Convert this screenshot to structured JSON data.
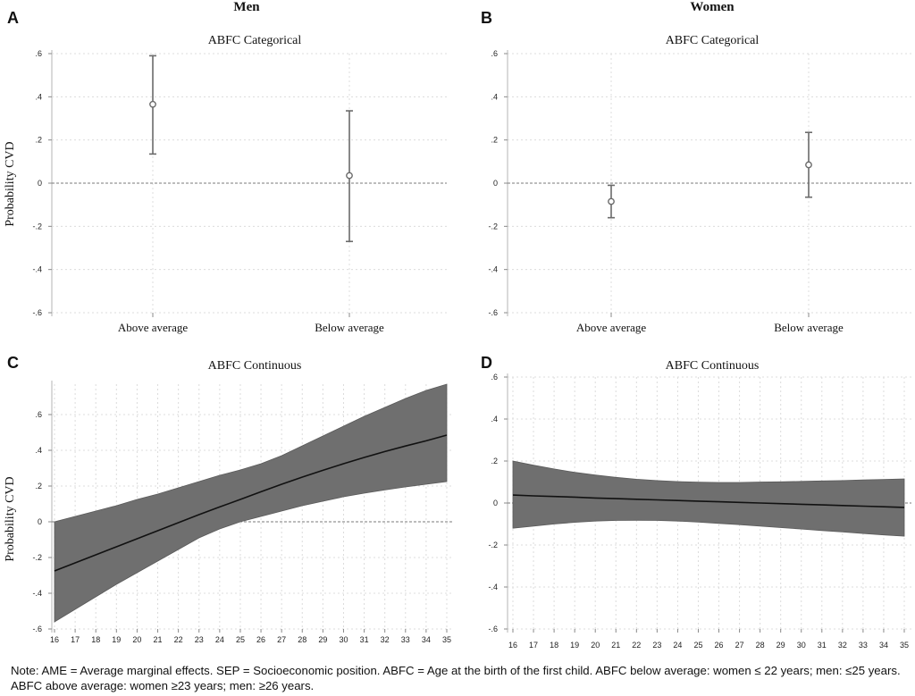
{
  "figure": {
    "group_titles": {
      "men": "Men",
      "women": "Women"
    },
    "note": "Note: AME = Average marginal effects. SEP = Socioeconomic position. ABFC = Age at the birth of the first child. ABFC below average: women ≤ 22 years; men: ≤25 years. ABFC above average: women ≥23 years; men: ≥26 years."
  },
  "colors": {
    "marker": "#6b6b6b",
    "band_fill": "#6f6f6f",
    "line": "#111111",
    "grid": "#dcdcdc",
    "reference": "#7a7a7a"
  },
  "chart_data": [
    {
      "panel": "A",
      "group": "Men",
      "type": "scatter",
      "title": "ABFC Categorical",
      "ylabel": "Probability CVD",
      "categories": [
        "Above average",
        "Below average"
      ],
      "estimates": [
        0.365,
        0.035
      ],
      "ci_lower": [
        0.135,
        -0.27
      ],
      "ci_upper": [
        0.59,
        0.335
      ],
      "ylim": [
        -0.6,
        0.6
      ],
      "yticks": [
        ".6",
        ".4",
        ".2",
        "0",
        "-.2",
        "-.4",
        "-.6"
      ],
      "reference_line": 0,
      "grid": true
    },
    {
      "panel": "B",
      "group": "Women",
      "type": "scatter",
      "title": "ABFC Categorical",
      "categories": [
        "Above average",
        "Below average"
      ],
      "estimates": [
        -0.085,
        0.085
      ],
      "ci_lower": [
        -0.16,
        -0.065
      ],
      "ci_upper": [
        -0.01,
        0.235
      ],
      "ylim": [
        -0.6,
        0.6
      ],
      "yticks": [
        ".6",
        ".4",
        ".2",
        "0",
        "-.2",
        "-.4",
        "-.6"
      ],
      "reference_line": 0,
      "grid": true
    },
    {
      "panel": "C",
      "group": "Men",
      "type": "area",
      "title": "ABFC Continuous",
      "ylabel": "Probability CVD",
      "x": [
        16,
        17,
        18,
        19,
        20,
        21,
        22,
        23,
        24,
        25,
        26,
        27,
        28,
        29,
        30,
        31,
        32,
        33,
        34,
        35
      ],
      "estimate": [
        -0.275,
        -0.23,
        -0.185,
        -0.14,
        -0.095,
        -0.05,
        -0.005,
        0.04,
        0.083,
        0.125,
        0.168,
        0.21,
        0.25,
        0.288,
        0.325,
        0.36,
        0.393,
        0.424,
        0.453,
        0.485
      ],
      "ci_lower": [
        -0.56,
        -0.49,
        -0.42,
        -0.35,
        -0.285,
        -0.22,
        -0.155,
        -0.09,
        -0.04,
        0.0,
        0.03,
        0.06,
        0.09,
        0.115,
        0.14,
        0.16,
        0.178,
        0.195,
        0.21,
        0.225
      ],
      "ci_upper": [
        0.0,
        0.03,
        0.06,
        0.09,
        0.125,
        0.155,
        0.19,
        0.225,
        0.26,
        0.29,
        0.325,
        0.37,
        0.425,
        0.48,
        0.535,
        0.59,
        0.64,
        0.69,
        0.735,
        0.77
      ],
      "ylim": [
        -0.6,
        0.77
      ],
      "yticks": [
        ".6",
        ".4",
        ".2",
        "0",
        "-.2",
        "-.4",
        "-.6"
      ],
      "reference_line": 0,
      "grid": true
    },
    {
      "panel": "D",
      "group": "Women",
      "type": "area",
      "title": "ABFC Continuous",
      "x": [
        16,
        17,
        18,
        19,
        20,
        21,
        22,
        23,
        24,
        25,
        26,
        27,
        28,
        29,
        30,
        31,
        32,
        33,
        34,
        35
      ],
      "estimate": [
        0.038,
        0.034,
        0.031,
        0.028,
        0.024,
        0.021,
        0.018,
        0.015,
        0.012,
        0.009,
        0.006,
        0.003,
        0.0,
        -0.003,
        -0.006,
        -0.009,
        -0.012,
        -0.015,
        -0.018,
        -0.021
      ],
      "ci_lower": [
        -0.12,
        -0.11,
        -0.1,
        -0.092,
        -0.086,
        -0.083,
        -0.082,
        -0.083,
        -0.086,
        -0.091,
        -0.097,
        -0.103,
        -0.11,
        -0.117,
        -0.124,
        -0.131,
        -0.138,
        -0.145,
        -0.152,
        -0.158
      ],
      "ci_upper": [
        0.2,
        0.18,
        0.162,
        0.146,
        0.133,
        0.122,
        0.113,
        0.107,
        0.102,
        0.099,
        0.098,
        0.098,
        0.1,
        0.101,
        0.103,
        0.105,
        0.107,
        0.11,
        0.112,
        0.115
      ],
      "ylim": [
        -0.6,
        0.6
      ],
      "yticks": [
        ".6",
        ".4",
        ".2",
        "0",
        "-.2",
        "-.4",
        "-.6"
      ],
      "reference_line": 0,
      "grid": true
    }
  ]
}
